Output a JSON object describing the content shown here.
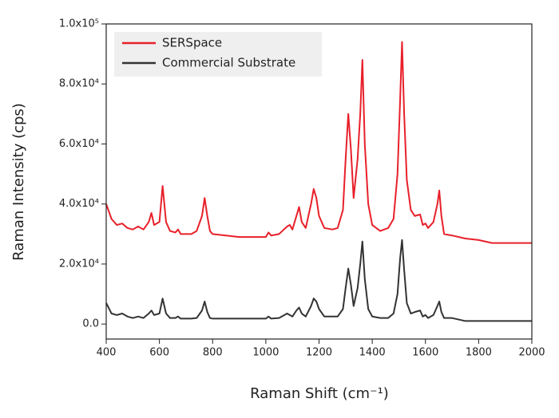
{
  "chart_data": {
    "type": "line",
    "xlabel": "Raman Shift (cm⁻¹)",
    "ylabel": "Raman Intensity (cps)",
    "x": [
      400,
      420,
      440,
      460,
      480,
      500,
      520,
      540,
      560,
      570,
      580,
      600,
      612,
      625,
      640,
      660,
      670,
      680,
      700,
      720,
      740,
      760,
      770,
      780,
      790,
      800,
      850,
      900,
      950,
      1000,
      1010,
      1020,
      1050,
      1080,
      1090,
      1100,
      1115,
      1125,
      1135,
      1150,
      1170,
      1180,
      1190,
      1200,
      1220,
      1250,
      1270,
      1290,
      1300,
      1310,
      1320,
      1330,
      1345,
      1355,
      1363,
      1372,
      1385,
      1400,
      1430,
      1460,
      1480,
      1495,
      1505,
      1512,
      1520,
      1530,
      1545,
      1560,
      1580,
      1590,
      1600,
      1610,
      1630,
      1645,
      1652,
      1660,
      1670,
      1700,
      1750,
      1800,
      1850,
      1900,
      2000
    ],
    "series": [
      {
        "name": "SERSpace",
        "color": "#e8202a",
        "values": [
          40000,
          35000,
          33000,
          33500,
          32000,
          31500,
          32500,
          31500,
          34000,
          37000,
          33000,
          34000,
          46000,
          34000,
          31000,
          30500,
          31500,
          30000,
          30000,
          30000,
          31000,
          36000,
          42000,
          36000,
          31000,
          30000,
          29500,
          29000,
          29000,
          29000,
          30500,
          29500,
          30000,
          32500,
          33000,
          31500,
          36000,
          39000,
          34000,
          32000,
          40000,
          45000,
          42000,
          36000,
          32000,
          31500,
          32000,
          38000,
          55000,
          70000,
          58000,
          42000,
          55000,
          70000,
          88000,
          60000,
          40000,
          33000,
          31000,
          32000,
          35000,
          50000,
          75000,
          94000,
          70000,
          48000,
          38000,
          36000,
          36500,
          33000,
          33500,
          32000,
          34000,
          40000,
          44500,
          36000,
          30000,
          29500,
          28500,
          28000,
          27000,
          27000,
          27000
        ]
      },
      {
        "name": "Commercial Substrate",
        "color": "#333333",
        "values": [
          7000,
          3500,
          3000,
          3500,
          2500,
          2000,
          2500,
          2000,
          3500,
          4500,
          3000,
          3500,
          8500,
          3500,
          2000,
          2000,
          2500,
          1800,
          1800,
          1800,
          2000,
          4500,
          7500,
          4000,
          2000,
          1800,
          1800,
          1800,
          1800,
          1800,
          2500,
          1800,
          2000,
          3500,
          3000,
          2500,
          4500,
          5500,
          3500,
          2500,
          6000,
          8500,
          7500,
          5000,
          2500,
          2500,
          2500,
          5000,
          12000,
          18500,
          13000,
          6000,
          12000,
          20000,
          27500,
          15000,
          5000,
          2500,
          2000,
          2000,
          3500,
          10000,
          22000,
          28000,
          18000,
          7000,
          3500,
          4000,
          4500,
          2500,
          3000,
          2000,
          3000,
          6000,
          7500,
          4000,
          2000,
          2000,
          1000,
          1000,
          1000,
          1000,
          1000
        ]
      }
    ],
    "xlim": [
      400,
      2000
    ],
    "xticks": [
      400,
      600,
      800,
      1000,
      1200,
      1400,
      1600,
      1800,
      2000
    ],
    "ylim": [
      -5000,
      100000
    ],
    "yticks": [
      {
        "value": 0,
        "label": "0.0"
      },
      {
        "value": 20000,
        "label": "2.0x10⁴"
      },
      {
        "value": 40000,
        "label": "4.0x10⁴"
      },
      {
        "value": 60000,
        "label": "6.0x10⁴"
      },
      {
        "value": 80000,
        "label": "8.0x10⁴"
      },
      {
        "value": 100000,
        "label": "1.0x10⁵"
      }
    ],
    "grid": false,
    "legend": "upper left"
  }
}
